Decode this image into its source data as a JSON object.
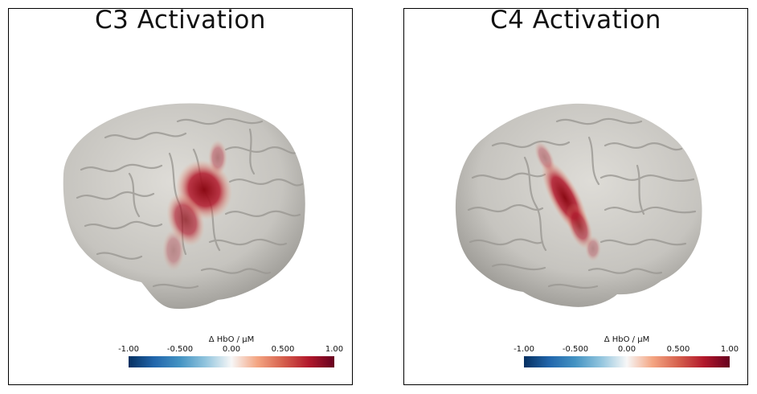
{
  "panels": [
    {
      "title": "C3 Activation",
      "side": "left"
    },
    {
      "title": "C4 Activation",
      "side": "right"
    }
  ],
  "colorbar": {
    "label": "Δ HbO / μM",
    "ticks": [
      "-1.00",
      "-0.500",
      "0.00",
      "0.500",
      "1.00"
    ],
    "range": [
      -1.0,
      1.0
    ],
    "colors": [
      "#053061",
      "#2166ac",
      "#4393c3",
      "#92c5de",
      "#f7f7f7",
      "#f4a582",
      "#d6604d",
      "#b2182b",
      "#67001f"
    ]
  },
  "colors": {
    "brain": "#cbc9c4",
    "sulcus": "#9a9893",
    "activation": "#8b0a14"
  }
}
